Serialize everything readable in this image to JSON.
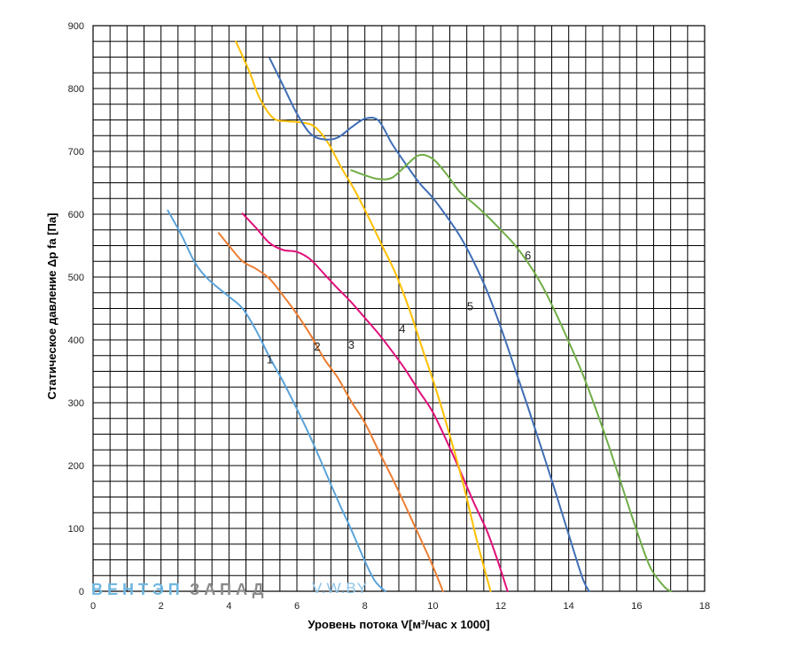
{
  "chart_data": {
    "type": "line",
    "xlabel": "Уровень потока V[м³/час х 1000]",
    "ylabel": "Статическое давление Δp fa [Па]",
    "xlim": [
      0,
      18
    ],
    "ylim": [
      0,
      900
    ],
    "x_ticks": [
      "0",
      "2",
      "4",
      "6",
      "8",
      "10",
      "12",
      "14",
      "16",
      "18"
    ],
    "y_ticks": [
      "0",
      "100",
      "200",
      "300",
      "400",
      "500",
      "600",
      "700",
      "800",
      "900"
    ],
    "grid": true,
    "minor_grid_x": 0.5,
    "minor_grid_y": 25,
    "watermark": {
      "part1": "ВЕНТЭП",
      "part2": "ЗАПАД",
      "part3": "V.W.BY"
    },
    "series": [
      {
        "name": "1",
        "color": "#5BA3D9",
        "label_at": [
          5.2,
          363
        ],
        "x": [
          2.2,
          2.6,
          3.0,
          3.4,
          4.0,
          4.4,
          4.8,
          5.2,
          5.6,
          6.0,
          6.4,
          6.8,
          7.2,
          7.6,
          8.0,
          8.3,
          8.6
        ],
        "y": [
          606,
          567,
          523,
          496,
          469,
          450,
          415,
          372,
          333,
          290,
          245,
          195,
          145,
          98,
          48,
          16,
          0
        ]
      },
      {
        "name": "2",
        "color": "#ED7D31",
        "label_at": [
          6.6,
          383
        ],
        "x": [
          3.7,
          4.0,
          4.4,
          4.8,
          5.2,
          5.6,
          6.0,
          6.4,
          6.8,
          7.2,
          7.6,
          8.0,
          8.4,
          8.8,
          9.2,
          9.6,
          10.0,
          10.3
        ],
        "y": [
          570,
          550,
          525,
          513,
          497,
          470,
          441,
          408,
          370,
          340,
          302,
          268,
          224,
          181,
          135,
          88,
          40,
          0
        ]
      },
      {
        "name": "3",
        "color": "#E0107A",
        "label_at": [
          7.6,
          386
        ],
        "x": [
          4.4,
          4.8,
          5.2,
          5.6,
          6.0,
          6.4,
          6.8,
          7.2,
          7.6,
          8.0,
          8.4,
          8.8,
          9.2,
          9.6,
          10.0,
          10.4,
          10.8,
          11.2,
          11.6,
          11.9,
          12.2
        ],
        "y": [
          601,
          578,
          554,
          543,
          540,
          528,
          505,
          482,
          460,
          435,
          410,
          382,
          352,
          318,
          285,
          240,
          192,
          142,
          95,
          50,
          0
        ]
      },
      {
        "name": "4",
        "color": "#FFC000",
        "label_at": [
          9.1,
          411
        ],
        "x": [
          4.2,
          4.6,
          4.9,
          5.3,
          5.7,
          6.1,
          6.5,
          6.9,
          7.3,
          7.7,
          8.1,
          8.5,
          8.9,
          9.3,
          9.7,
          10.1,
          10.5,
          10.9,
          11.3,
          11.7
        ],
        "y": [
          875,
          827,
          785,
          753,
          748,
          746,
          740,
          715,
          675,
          638,
          596,
          551,
          506,
          450,
          385,
          320,
          248,
          170,
          80,
          0
        ]
      },
      {
        "name": "5",
        "color": "#3F6EB5",
        "label_at": [
          11.1,
          447
        ],
        "x": [
          5.2,
          5.6,
          6.0,
          6.4,
          6.8,
          7.2,
          7.6,
          8.0,
          8.4,
          8.8,
          9.2,
          9.6,
          10.0,
          10.4,
          10.8,
          11.2,
          11.6,
          12.0,
          12.4,
          12.8,
          13.2,
          13.6,
          14.0,
          14.4,
          14.6
        ],
        "y": [
          848,
          804,
          760,
          728,
          719,
          722,
          738,
          752,
          749,
          712,
          680,
          650,
          626,
          597,
          565,
          525,
          477,
          420,
          357,
          293,
          227,
          160,
          90,
          22,
          0
        ]
      },
      {
        "name": "6",
        "color": "#70AD47",
        "label_at": [
          12.8,
          528
        ],
        "x": [
          7.6,
          8.0,
          8.4,
          8.8,
          9.2,
          9.6,
          10.0,
          10.4,
          10.8,
          11.2,
          11.6,
          12.0,
          12.4,
          12.8,
          13.2,
          13.6,
          14.0,
          14.4,
          14.8,
          15.2,
          15.6,
          16.0,
          16.4,
          16.8,
          17.0
        ],
        "y": [
          670,
          662,
          656,
          658,
          677,
          694,
          688,
          664,
          635,
          617,
          597,
          575,
          552,
          523,
          488,
          445,
          397,
          347,
          290,
          228,
          162,
          97,
          38,
          8,
          0
        ]
      }
    ]
  }
}
